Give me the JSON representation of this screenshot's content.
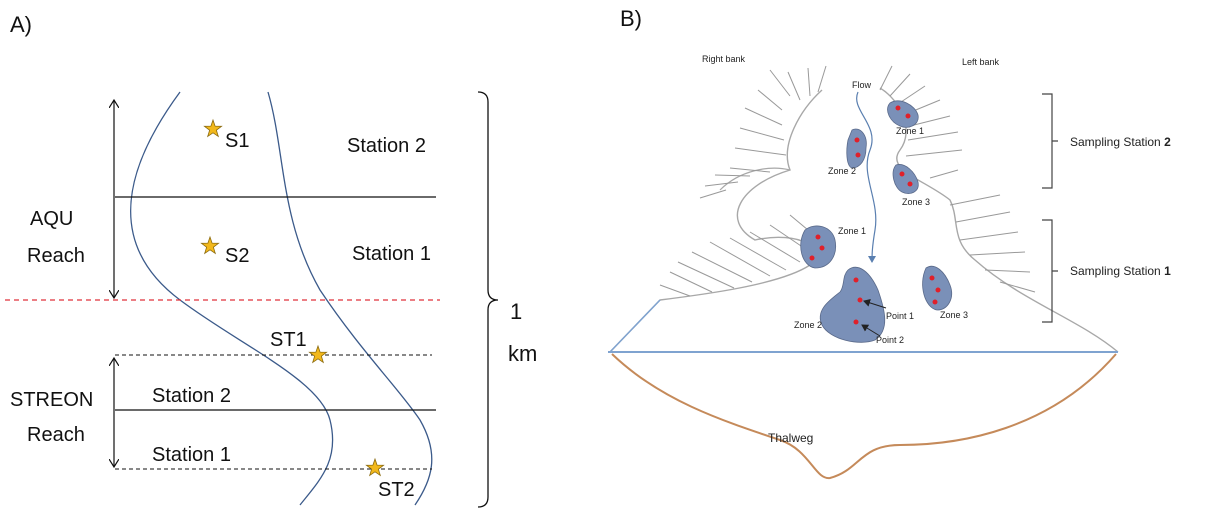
{
  "panel_a": {
    "label": "A)",
    "station_2": "Station 2",
    "station_1": "Station 1",
    "s1": "S1",
    "s2": "S2",
    "aqu": "AQU",
    "aqu_reach": "Reach",
    "st1": "ST1",
    "st2": "ST2",
    "streon": "STREON",
    "streon_reach": "Reach",
    "lower_station_2": "Station 2",
    "lower_station_1": "Station 1",
    "scale_value": "1",
    "scale_unit": "km",
    "colors": {
      "river_line": "#3b5a8a",
      "divider_red": "#e0303a",
      "star": "#f2b81c"
    }
  },
  "panel_b": {
    "label": "B)",
    "right_bank": "Right bank",
    "left_bank": "Left bank",
    "flow": "Flow",
    "sampling_station_2": "Sampling Station",
    "sampling_station_2_num": "2",
    "sampling_station_1": "Sampling Station",
    "sampling_station_1_num": "1",
    "upper_zone_1": "Zone 1",
    "upper_zone_2": "Zone 2",
    "upper_zone_3": "Zone 3",
    "lower_zone_1": "Zone 1",
    "lower_zone_2": "Zone 2",
    "lower_zone_3": "Zone 3",
    "point_1": "Point 1",
    "point_2": "Point 2",
    "thalweg": "Thalweg",
    "colors": {
      "zone_fill": "#7a90b8",
      "dot": "#e0202a",
      "thalweg": "#c58a5a",
      "water_line": "#7fa3d0"
    }
  }
}
